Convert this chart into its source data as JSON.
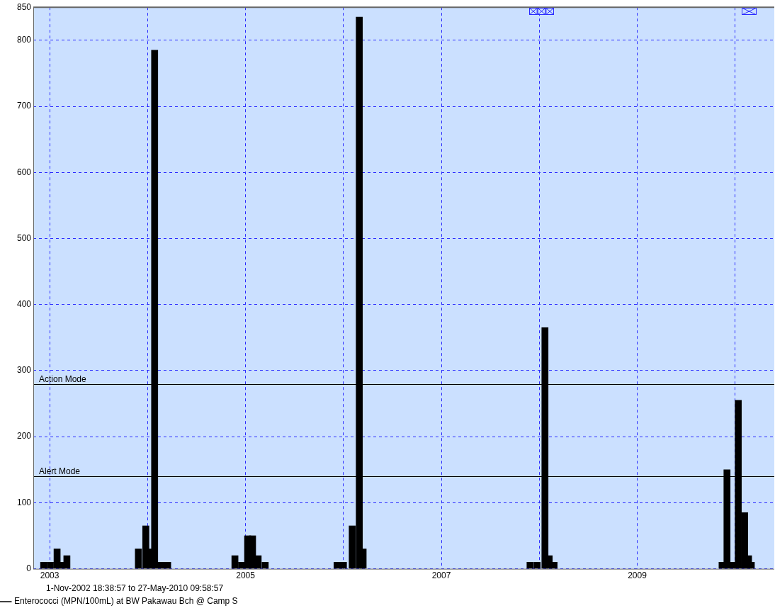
{
  "chart_data": {
    "type": "bar",
    "xlim": [
      2002.833,
      2010.4
    ],
    "ylim": [
      0,
      850
    ],
    "xticks": [
      2003,
      {
        "value": 2004,
        "label": null
      },
      2005,
      {
        "value": 2006,
        "label": null
      },
      2007,
      {
        "value": 2008,
        "label": null
      },
      2009,
      {
        "value": 2010,
        "label": null
      }
    ],
    "yticks": [
      0,
      100,
      200,
      300,
      400,
      500,
      600,
      700,
      800,
      850
    ],
    "grid": true,
    "legend": "bottom left",
    "series": [
      {
        "name": "Enterococci (MPN/100mL) at BW Pakawau Bch @ Camp S",
        "color": "#000000",
        "x": [
          2002.939,
          2003.007,
          2003.076,
          2003.126,
          2003.176,
          2003.906,
          2003.982,
          2004.029,
          2004.072,
          2004.14,
          2004.205,
          2004.892,
          2004.96,
          2005.022,
          2005.072,
          2005.129,
          2005.201,
          2005.935,
          2006.0,
          2006.09,
          2006.162,
          2006.201,
          2007.906,
          2007.978,
          2008.058,
          2008.101,
          2008.151,
          2009.867,
          2009.917,
          2009.975,
          2010.032,
          2010.097,
          2010.137,
          2010.165
        ],
        "values": [
          10,
          10,
          30,
          10,
          20,
          30,
          65,
          30,
          785,
          10,
          10,
          20,
          10,
          50,
          50,
          20,
          10,
          10,
          10,
          65,
          835,
          30,
          10,
          10,
          365,
          20,
          10,
          10,
          150,
          10,
          255,
          85,
          20,
          10
        ]
      }
    ],
    "ref_lines": [
      {
        "axis": "y",
        "value": 280,
        "label": "Action Mode",
        "color": "#000000"
      },
      {
        "axis": "y",
        "value": 140,
        "label": "Alert Mode",
        "color": "#000000"
      }
    ],
    "annotations": [
      "1-Nov-2002 18:38:57 to 27-May-2010 09:58:57"
    ]
  }
}
